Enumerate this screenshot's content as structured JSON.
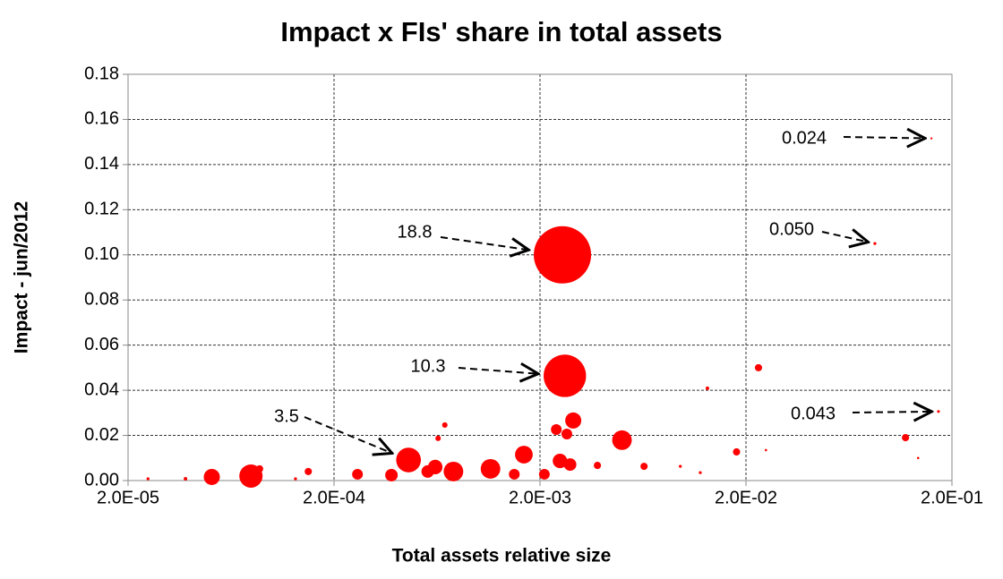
{
  "chart_data": {
    "type": "bubble",
    "title": "Impact x FIs' share in total assets",
    "x_label": "Total assets relative size",
    "y_label": "Impact - jun/2012",
    "log_x": true,
    "grid": true,
    "xlim": [
      2e-05,
      0.2
    ],
    "xticks": [
      {
        "value": 2e-05,
        "label": "2.0E-05"
      },
      {
        "value": 0.0002,
        "label": "2.0E-04"
      },
      {
        "value": 0.002,
        "label": "2.0E-03"
      },
      {
        "value": 0.02,
        "label": "2.0E-02"
      },
      {
        "value": 0.2,
        "label": "2.0E-01"
      }
    ],
    "ylim": [
      0,
      0.18
    ],
    "yticks": [
      {
        "value": 0,
        "label": "0.00"
      },
      {
        "value": 0.02,
        "label": "0.02"
      },
      {
        "value": 0.04,
        "label": "0.04"
      },
      {
        "value": 0.06,
        "label": "0.06"
      },
      {
        "value": 0.08,
        "label": "0.08"
      },
      {
        "value": 0.1,
        "label": "0.10"
      },
      {
        "value": 0.12,
        "label": "0.12"
      },
      {
        "value": 0.14,
        "label": "0.14"
      },
      {
        "value": 0.16,
        "label": "0.16"
      },
      {
        "value": 0.18,
        "label": "0.18"
      }
    ],
    "series": [
      {
        "color": "#ff0000",
        "x": [
          0.00257,
          0.00264,
          0.00046,
          0.159,
          0.0845,
          0.172,
          5.1e-05,
          7.9e-05,
          8.7e-05,
          0.00015,
          0.00026,
          0.00038,
          0.00057,
          0.00062,
          0.00076,
          0.00115,
          0.0015,
          0.00167,
          0.00064,
          0.00069,
          0.0024,
          0.0027,
          0.0029,
          0.0025,
          0.0028,
          0.0021,
          0.005,
          0.0038,
          0.0064,
          0.013,
          0.023,
          0.018,
          0.119,
          0.0096,
          0.012,
          0.025,
          0.137,
          2.5e-05,
          3.8e-05,
          0.00013
        ],
        "values": [
          0.1,
          0.0464,
          0.0091,
          0.1516,
          0.105,
          0.0306,
          0.0016,
          0.002,
          0.0052,
          0.004,
          0.0028,
          0.0024,
          0.004,
          0.006,
          0.004,
          0.0052,
          0.0028,
          0.0115,
          0.0187,
          0.0246,
          0.0226,
          0.0206,
          0.0266,
          0.0087,
          0.0071,
          0.0028,
          0.0179,
          0.0067,
          0.0063,
          0.0409,
          0.05,
          0.0127,
          0.019,
          0.0063,
          0.0035,
          0.0135,
          0.01,
          0.0008,
          0.0008,
          0.0008
        ],
        "sizes": [
          18.8,
          10.3,
          3.5,
          0.024,
          0.05,
          0.043,
          1.49,
          3.1,
          0.3,
          0.3,
          0.66,
          0.9,
          0.9,
          1.2,
          2.2,
          2.2,
          0.66,
          1.8,
          0.17,
          0.17,
          0.66,
          0.66,
          1.49,
          1.2,
          0.9,
          0.66,
          2.2,
          0.3,
          0.3,
          0.07,
          0.3,
          0.3,
          0.3,
          0.05,
          0.05,
          0.03,
          0.03,
          0.05,
          0.07,
          0.05
        ],
        "value_labels": [
          "18.8",
          "10.3",
          "3.5",
          "0.024",
          "0.050",
          "0.043",
          null,
          null,
          null,
          null,
          null,
          null,
          null,
          null,
          null,
          null,
          null,
          null,
          null,
          null,
          null,
          null,
          null,
          null,
          null,
          null,
          null,
          null,
          null,
          null,
          null,
          null,
          null,
          null,
          null,
          null,
          null,
          null,
          null,
          null
        ]
      }
    ]
  }
}
